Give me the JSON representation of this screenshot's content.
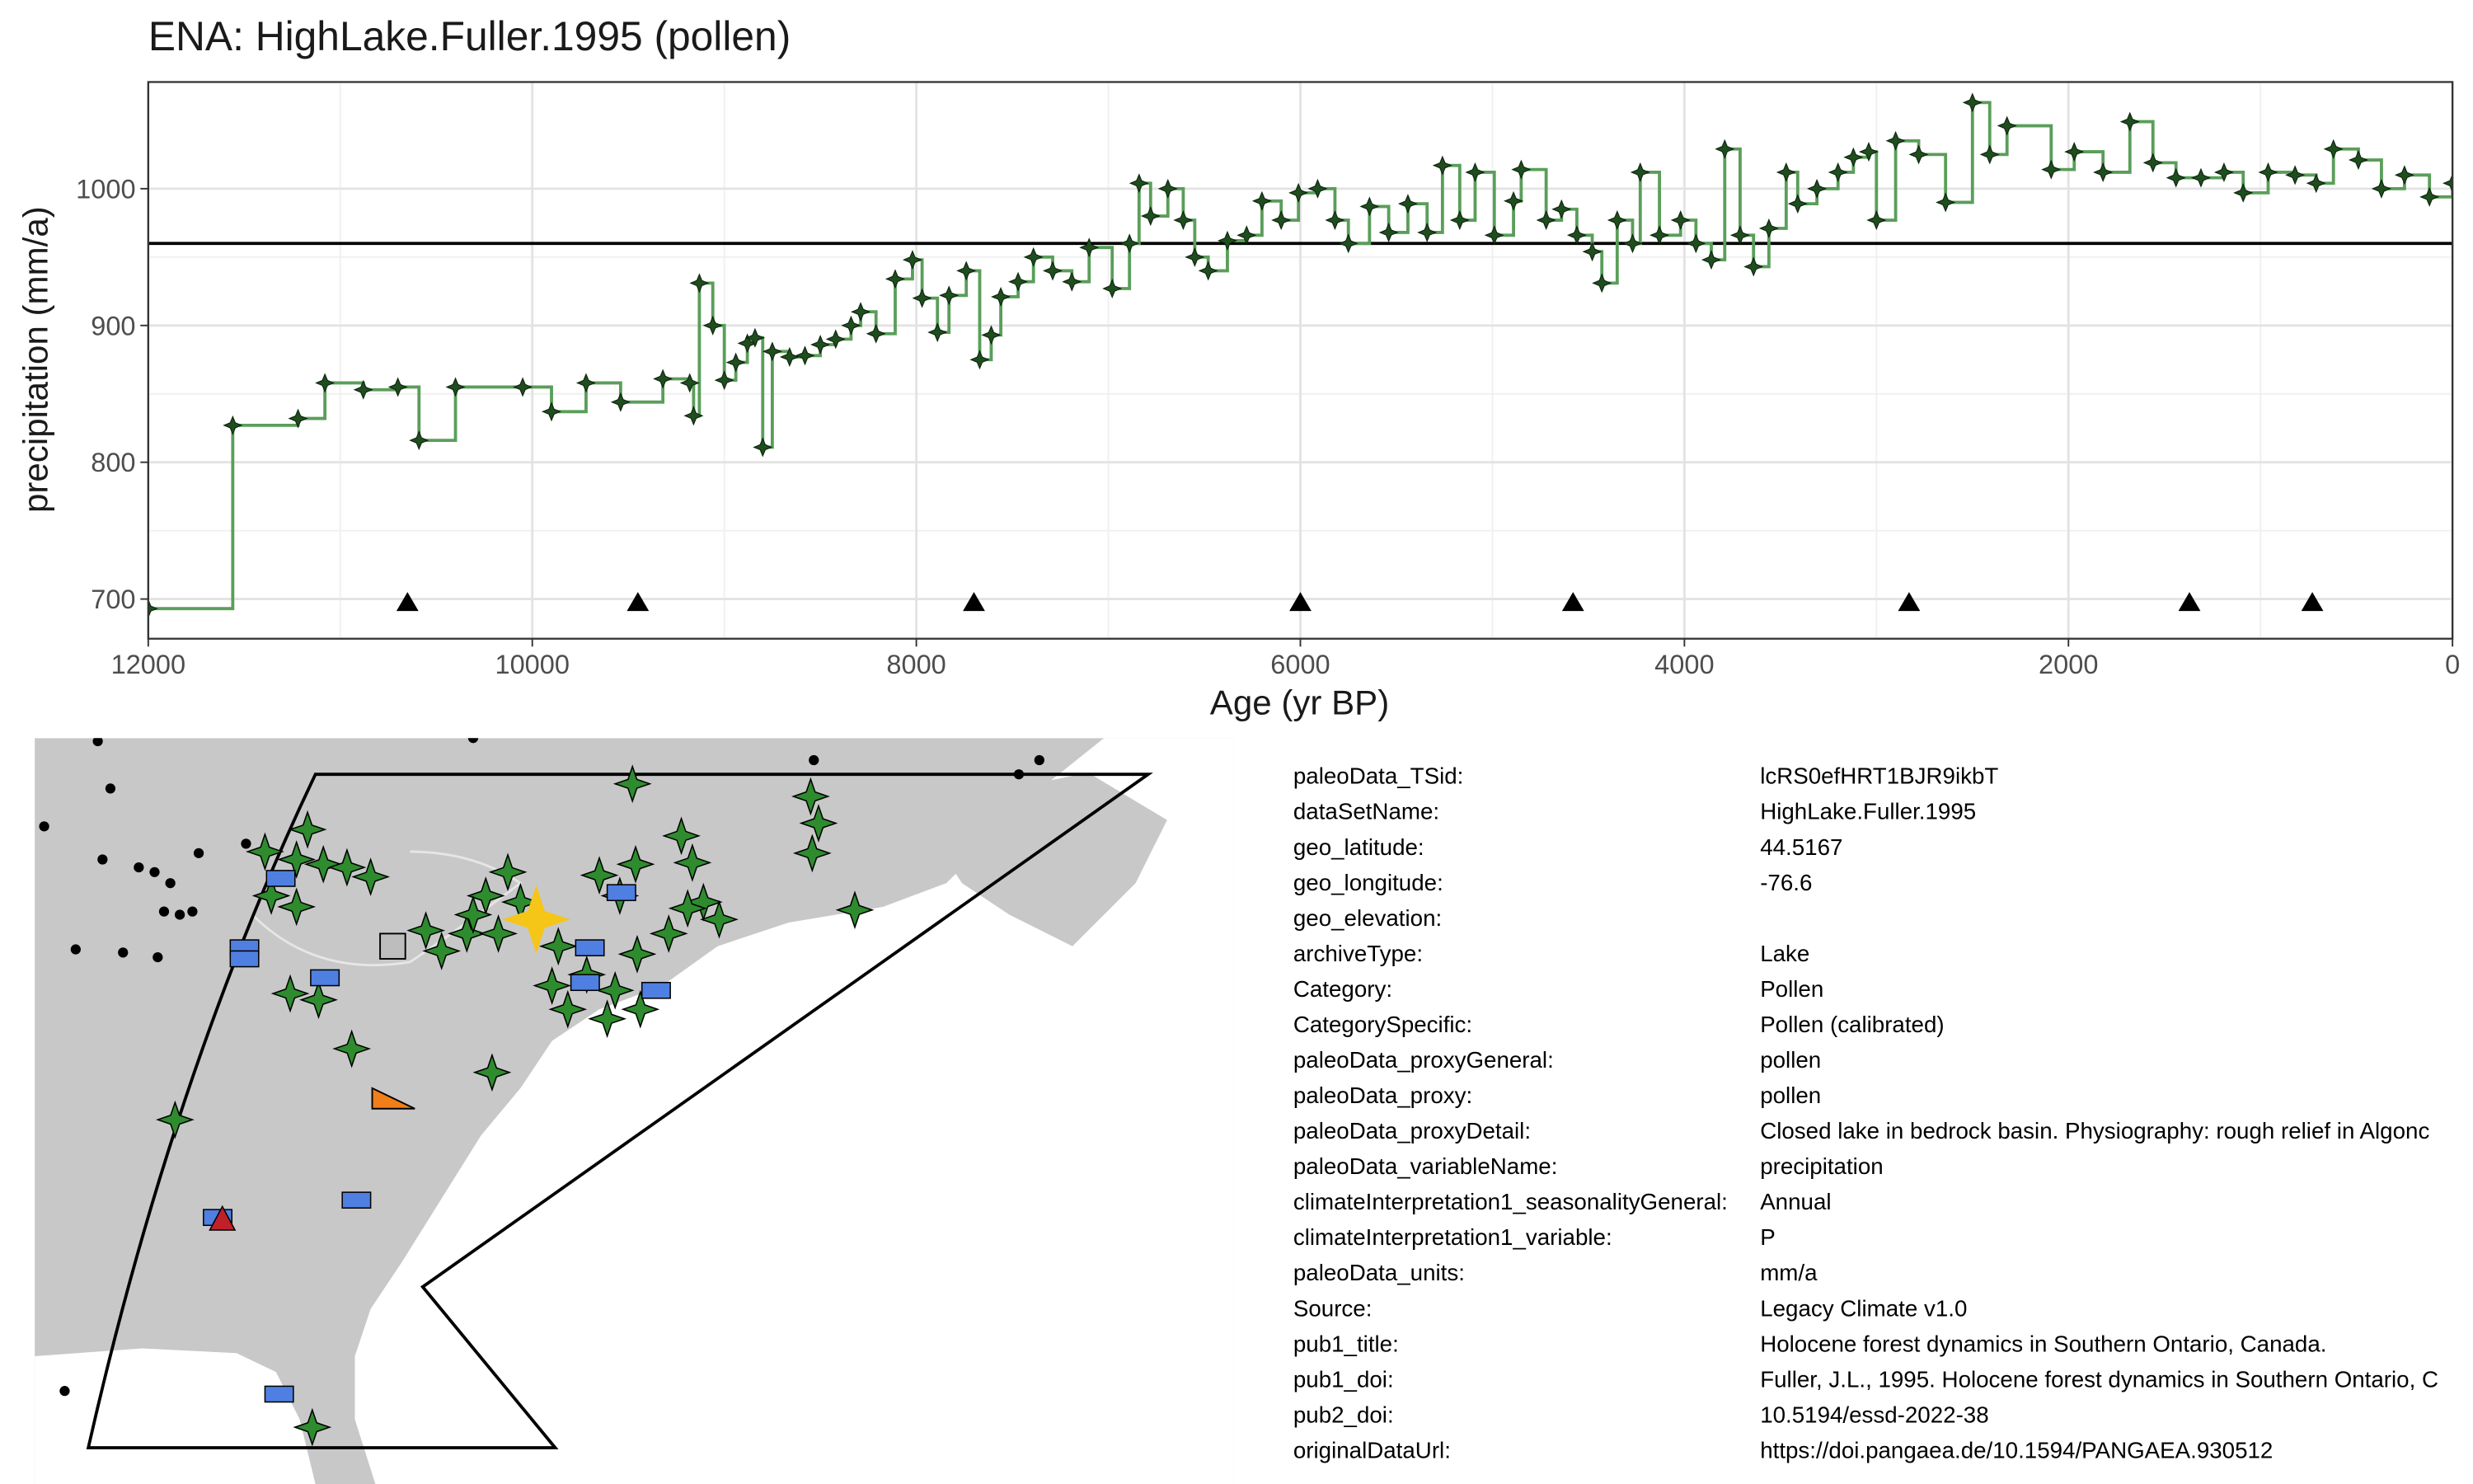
{
  "chart_data": {
    "type": "step",
    "title": "ENA: HighLake.Fuller.1995 (pollen)",
    "y_label": "precipitation (mm/a)",
    "x_label": "Age (yr BP)",
    "color": "#5a9e5a",
    "marker_color": "#1f4d1f",
    "xlim": [
      12000,
      0
    ],
    "xticks": [
      12000,
      10000,
      8000,
      6000,
      4000,
      2000,
      0
    ],
    "ylim": [
      671,
      1078
    ],
    "yticks": [
      700,
      800,
      900,
      1000
    ],
    "grid": true,
    "hline": 960,
    "x": [
      12000,
      11560,
      11220,
      11080,
      10880,
      10700,
      10590,
      10400,
      10050,
      9900,
      9720,
      9540,
      9320,
      9180,
      9160,
      9130,
      9060,
      9000,
      8940,
      8880,
      8840,
      8800,
      8750,
      8660,
      8580,
      8500,
      8420,
      8340,
      8290,
      8210,
      8110,
      8020,
      7970,
      7890,
      7830,
      7740,
      7670,
      7610,
      7560,
      7470,
      7390,
      7290,
      7190,
      7100,
      6980,
      6890,
      6840,
      6780,
      6690,
      6610,
      6550,
      6480,
      6380,
      6280,
      6200,
      6100,
      6010,
      5910,
      5820,
      5750,
      5640,
      5540,
      5440,
      5340,
      5260,
      5170,
      5090,
      4990,
      4890,
      4850,
      4720,
      4640,
      4560,
      4480,
      4430,
      4350,
      4270,
      4230,
      4130,
      4020,
      3940,
      3860,
      3790,
      3710,
      3640,
      3560,
      3470,
      3410,
      3310,
      3200,
      3120,
      3040,
      3000,
      2900,
      2780,
      2640,
      2500,
      2410,
      2320,
      2090,
      1970,
      1820,
      1680,
      1560,
      1440,
      1310,
      1190,
      1090,
      960,
      820,
      710,
      620,
      490,
      370,
      250,
      120,
      0
    ],
    "values": [
      693,
      827,
      832,
      858,
      853,
      855,
      816,
      855,
      855,
      837,
      858,
      844,
      861,
      858,
      834,
      931,
      900,
      860,
      873,
      887,
      891,
      811,
      881,
      877,
      878,
      886,
      890,
      900,
      910,
      894,
      934,
      948,
      920,
      895,
      922,
      940,
      875,
      893,
      921,
      932,
      950,
      940,
      932,
      957,
      927,
      960,
      1004,
      980,
      1000,
      977,
      950,
      940,
      962,
      966,
      991,
      977,
      997,
      1000,
      977,
      960,
      987,
      968,
      989,
      968,
      1017,
      977,
      1012,
      966,
      991,
      1014,
      977,
      985,
      966,
      954,
      931,
      977,
      960,
      1012,
      966,
      977,
      960,
      948,
      1029,
      966,
      943,
      971,
      1012,
      989,
      1000,
      1012,
      1023,
      1027,
      977,
      1035,
      1025,
      990,
      1063,
      1025,
      1046,
      1014,
      1027,
      1012,
      1049,
      1019,
      1008,
      1008,
      1012,
      997,
      1012,
      1010,
      1004,
      1029,
      1021,
      1000,
      1010,
      994,
      1004
    ],
    "chronology": {
      "x": [
        10650,
        9450,
        7700,
        6000,
        4580,
        2830,
        1370,
        730
      ],
      "values": [
        697,
        697,
        697,
        697,
        697,
        697,
        697,
        697
      ]
    }
  },
  "metadata": {
    "rows": [
      [
        "paleoData_TSid:",
        "lcRS0efHRT1BJR9ikbT"
      ],
      [
        "dataSetName:",
        "HighLake.Fuller.1995"
      ],
      [
        "geo_latitude:",
        "44.5167"
      ],
      [
        "geo_longitude:",
        "-76.6"
      ],
      [
        "geo_elevation:"
      ],
      [
        "archiveType:",
        "Lake"
      ],
      [
        "Category:",
        "Pollen"
      ],
      [
        "CategorySpecific:",
        "Pollen (calibrated)"
      ],
      [
        "paleoData_proxyGeneral:",
        "pollen"
      ],
      [
        "paleoData_proxy:",
        "pollen"
      ],
      [
        "paleoData_proxyDetail:",
        "Closed lake in bedrock basin. Physiography: rough relief in Algonc"
      ],
      [
        "paleoData_variableName:",
        "precipitation"
      ],
      [
        "climateInterpretation1_seasonalityGeneral:",
        "Annual"
      ],
      [
        "climateInterpretation1_variable:",
        "P"
      ],
      [
        "paleoData_units:",
        "mm/a"
      ],
      [
        "Source:",
        "Legacy Climate v1.0"
      ],
      [
        "pub1_title:",
        "Holocene forest dynamics in Southern Ontario, Canada."
      ],
      [
        "pub1_doi:",
        "Fuller, J.L., 1995. Holocene forest dynamics in Southern Ontario, C"
      ],
      [
        "pub2_doi:",
        "10.5194/essd-2022-38"
      ],
      [
        "originalDataUrl:",
        "https://doi.pangaea.de/10.1594/PANGAEA.930512"
      ]
    ]
  }
}
